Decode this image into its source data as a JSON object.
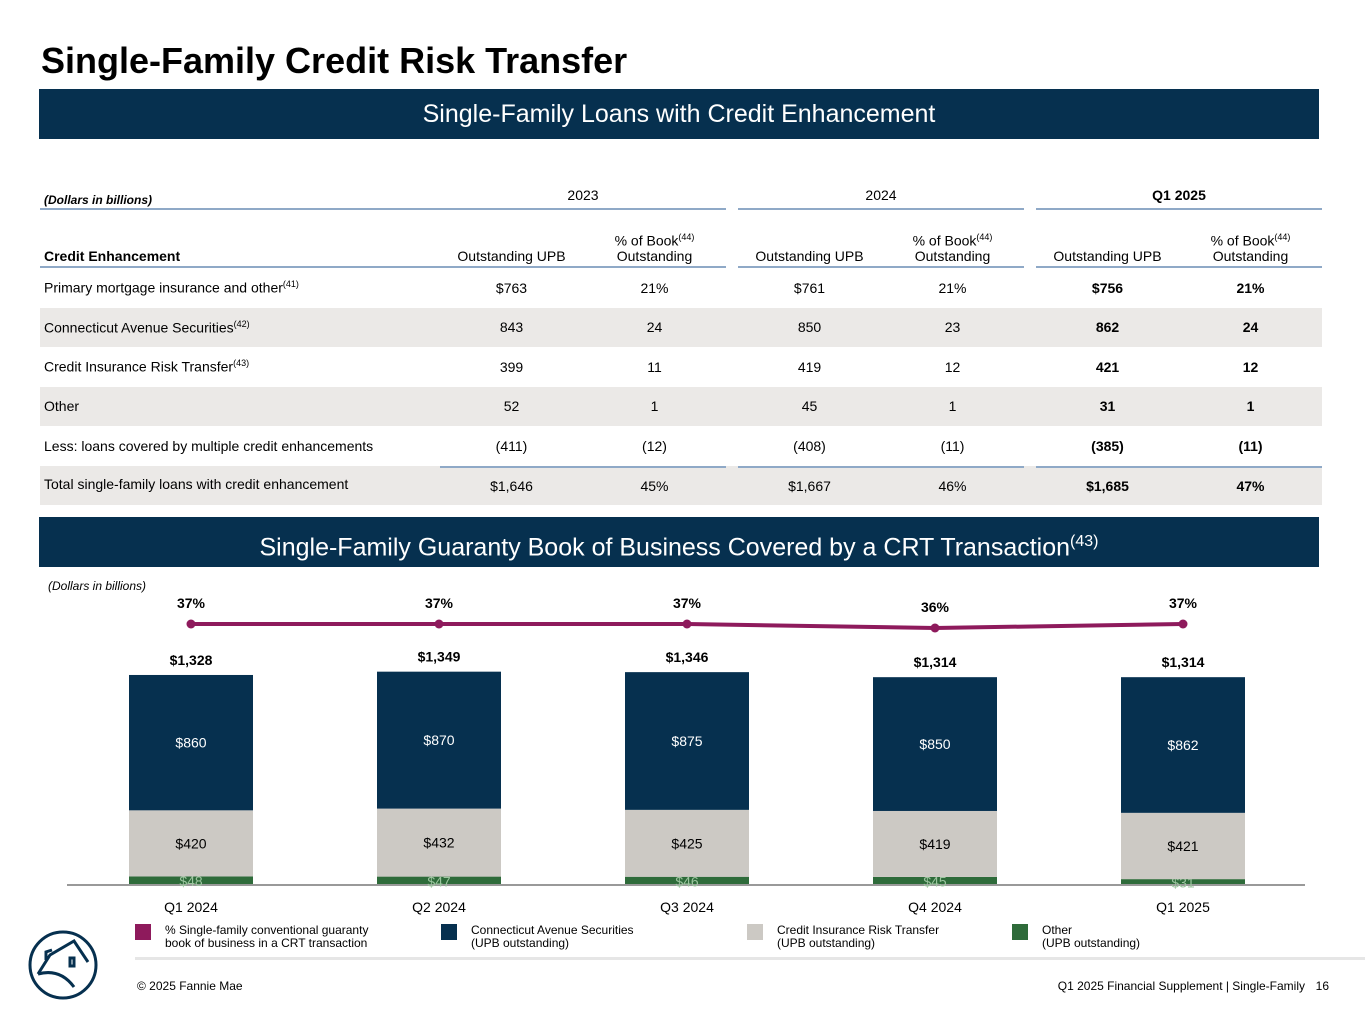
{
  "title": "Single-Family Credit Risk Transfer",
  "band1": "Single-Family Loans with Credit Enhancement",
  "band2": {
    "text": "Single-Family Guaranty Book of Business Covered by a CRT Transaction",
    "note": "(43)"
  },
  "table": {
    "units": "(Dollars in billions)",
    "years": [
      "2023",
      "2024",
      "Q1 2025"
    ],
    "header_label": "Credit Enhancement",
    "col_upb": "Outstanding UPB",
    "col_pct": "% of Book",
    "col_pct_note": "(44)",
    "col_pct2": "Outstanding",
    "rows": [
      {
        "label": "Primary mortgage insurance and other",
        "note": "(41)",
        "v": [
          "$763",
          "21%",
          "$761",
          "21%",
          "$756",
          "21%"
        ]
      },
      {
        "label": "Connecticut Avenue Securities",
        "note": "(42)",
        "v": [
          "843",
          "24",
          "850",
          "23",
          "862",
          "24"
        ]
      },
      {
        "label": "Credit Insurance Risk Transfer",
        "note": "(43)",
        "v": [
          "399",
          "11",
          "419",
          "12",
          "421",
          "12"
        ]
      },
      {
        "label": "Other",
        "note": "",
        "v": [
          "52",
          "1",
          "45",
          "1",
          "31",
          "1"
        ]
      },
      {
        "label": "Less: loans covered by multiple credit enhancements",
        "note": "",
        "v": [
          "(411)",
          "(12)",
          "(408)",
          "(11)",
          "(385)",
          "(11)"
        ]
      },
      {
        "label": "Total single-family loans with credit enhancement",
        "note": "",
        "v": [
          "$1,646",
          "45%",
          "$1,667",
          "46%",
          "$1,685",
          "47%"
        ]
      }
    ]
  },
  "chart_data": {
    "type": "bar",
    "units": "(Dollars in billions)",
    "categories": [
      "Q1 2024",
      "Q2 2024",
      "Q3 2024",
      "Q4 2024",
      "Q1 2025"
    ],
    "totals": [
      "$1,328",
      "$1,349",
      "$1,346",
      "$1,314",
      "$1,314"
    ],
    "series": [
      {
        "name": "Other (UPB outstanding)",
        "values": [
          48,
          47,
          46,
          45,
          31
        ],
        "labels": [
          "$48",
          "$47",
          "$46",
          "$45",
          "$31"
        ],
        "color": "#2e6b3a"
      },
      {
        "name": "Credit Insurance Risk Transfer (UPB outstanding)",
        "values": [
          420,
          432,
          425,
          419,
          421
        ],
        "labels": [
          "$420",
          "$432",
          "$425",
          "$419",
          "$421"
        ],
        "color": "#ccc9c4"
      },
      {
        "name": "Connecticut Avenue Securities (UPB outstanding)",
        "values": [
          860,
          870,
          875,
          850,
          862
        ],
        "labels": [
          "$860",
          "$870",
          "$875",
          "$850",
          "$862"
        ],
        "color": "#06304f"
      }
    ],
    "line": {
      "name": "% Single-family conventional guaranty book of business in a CRT transaction",
      "values": [
        37,
        37,
        37,
        36,
        37
      ],
      "labels": [
        "37%",
        "37%",
        "37%",
        "36%",
        "37%"
      ],
      "color": "#8e1a5c"
    }
  },
  "legend": [
    {
      "l1": "% Single-family conventional guaranty",
      "l2": "book of business in a CRT transaction",
      "color": "#8e1a5c"
    },
    {
      "l1": "Connecticut Avenue Securities",
      "l2": "(UPB outstanding)",
      "color": "#06304f"
    },
    {
      "l1": "Credit Insurance Risk Transfer",
      "l2": "(UPB outstanding)",
      "color": "#ccc9c4"
    },
    {
      "l1": "Other",
      "l2": "(UPB outstanding)",
      "color": "#2e6b3a"
    }
  ],
  "footer": {
    "copyright": "© 2025 Fannie Mae",
    "right": "Q1 2025 Financial Supplement | Single-Family",
    "page": "16"
  }
}
